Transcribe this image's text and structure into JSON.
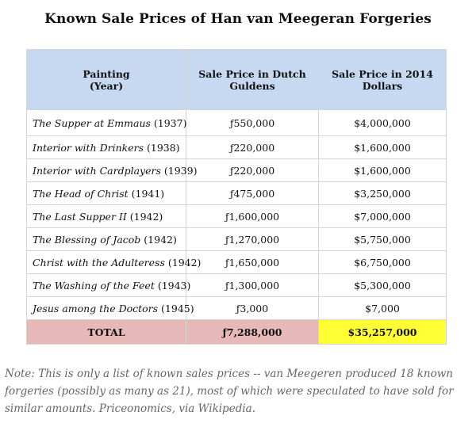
{
  "title": "Known Sale Prices of Han van Meegeran Forgeries",
  "table": {
    "headers": {
      "painting": [
        "Painting",
        "(Year)"
      ],
      "guldens": [
        "Sale Price in Dutch",
        "Guldens"
      ],
      "dollars": [
        "Sale Price in 2014",
        "Dollars"
      ]
    },
    "rows": [
      {
        "title": "The Supper at Emmaus",
        "year": " (1937)",
        "guldens": "ƒ550,000",
        "dollars": "$4,000,000"
      },
      {
        "title": "Interior with Drinkers",
        "year": " (1938)",
        "guldens": "ƒ220,000",
        "dollars": "$1,600,000"
      },
      {
        "title": "Interior with Cardplayers",
        "year": " (1939)",
        "guldens": "ƒ220,000",
        "dollars": "$1,600,000"
      },
      {
        "title": "The Head of Christ",
        "year": " (1941)",
        "guldens": "ƒ475,000",
        "dollars": "$3,250,000"
      },
      {
        "title": "The Last Supper II",
        "year": " (1942)",
        "guldens": "ƒ1,600,000",
        "dollars": "$7,000,000"
      },
      {
        "title": "The Blessing of Jacob",
        "year": " (1942)",
        "guldens": "ƒ1,270,000",
        "dollars": "$5,750,000"
      },
      {
        "title": "Christ with the Adulteress",
        "year": " (1942)",
        "guldens": "ƒ1,650,000",
        "dollars": "$6,750,000"
      },
      {
        "title": "The Washing of the Feet",
        "year": " (1943)",
        "guldens": "ƒ1,300,000",
        "dollars": "$5,300,000"
      },
      {
        "title": "Jesus among the Doctors",
        "year": " (1945)",
        "guldens": "ƒ3,000",
        "dollars": "$7,000"
      }
    ],
    "total": {
      "label": "TOTAL",
      "guldens": "ƒ7,288,000",
      "dollars": "$35,257,000"
    }
  },
  "note": "Note: This is only a list of known sales prices -- van Meegeren produced 18 known forgeries (possibly as many as 21), most of which were speculated to have sold for similar amounts. Priceonomics, via Wikipedia.",
  "colors": {
    "header_bg": "#c6d9f1",
    "total_pink": "#e6b8b8",
    "total_yellow": "#ffff33",
    "note_text": "#666666"
  }
}
